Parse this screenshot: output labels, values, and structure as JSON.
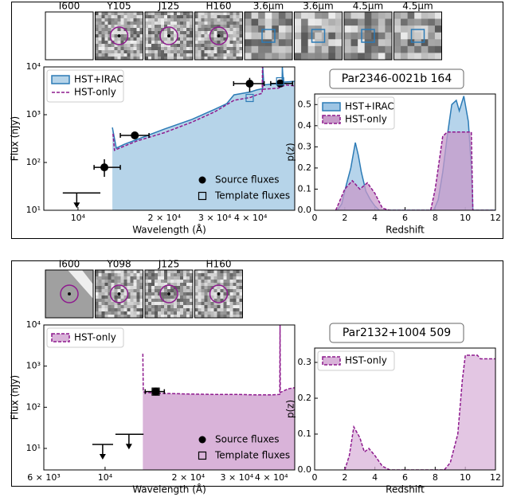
{
  "panels": [
    {
      "cutouts": [
        "I600",
        "Y105",
        "J125",
        "H160",
        "3.6μm",
        "3.6μm",
        "4.5μm",
        "4.5μm"
      ]
    },
    {
      "cutouts": [
        "I600",
        "Y098",
        "J125",
        "H160"
      ]
    }
  ],
  "chart_data": [
    {
      "type": "sed",
      "xscale": "log",
      "yscale": "log",
      "xlabel": "Wavelength (Å)",
      "ylabel": "Flux (nJy)",
      "xlim": [
        7600,
        57000
      ],
      "ylim": [
        10,
        10000
      ],
      "xticks": [
        {
          "value": 10000,
          "label": "10⁴"
        },
        {
          "value": 20000,
          "label": "2 × 10⁴"
        },
        {
          "value": 30000,
          "label": "3 × 10⁴"
        },
        {
          "value": 40000,
          "label": "4 × 10⁴"
        }
      ],
      "yticks": [
        {
          "value": 10,
          "label": "10¹"
        },
        {
          "value": 100,
          "label": "10²"
        },
        {
          "value": 1000,
          "label": "10³"
        },
        {
          "value": 10000,
          "label": "10⁴"
        }
      ],
      "legend": "upper left",
      "points_legend": "lower right",
      "series": [
        {
          "name": "HST+IRAC",
          "color": "#2c7bb6",
          "fill": "#b6d4e9",
          "x": [
            13180,
            13600,
            14500,
            16000,
            20000,
            25000,
            30000,
            33000,
            35000,
            40000,
            42000,
            44000,
            44100,
            44500,
            50000,
            51500,
            51600,
            52000,
            57000
          ],
          "values": [
            540,
            200,
            240,
            300,
            500,
            800,
            1300,
            1700,
            2600,
            3000,
            3300,
            3500,
            10000,
            4200,
            4500,
            4700,
            10000,
            4800,
            5000
          ]
        },
        {
          "name": "HST-only",
          "color": "#8e1a8e",
          "dashed": true,
          "x": [
            13250,
            13400,
            14500,
            16000,
            20000,
            25000,
            30000,
            35000,
            40000,
            42000,
            43900,
            44000,
            44100,
            50000,
            53000,
            57000
          ],
          "values": [
            400,
            180,
            220,
            280,
            420,
            700,
            1150,
            2000,
            2300,
            2600,
            2800,
            10000,
            3400,
            3600,
            4200,
            4000
          ]
        }
      ],
      "points": {
        "name": "Source fluxes",
        "x": [
          12360,
          15780,
          39700,
          50700
        ],
        "values": [
          79,
          369,
          4470,
          4500
        ],
        "x_range": [
          [
            11380,
            14050
          ],
          [
            14050,
            17690
          ],
          [
            34900,
            44600
          ],
          [
            47000,
            56000
          ]
        ],
        "y_range": [
          [
            50,
            117
          ],
          [
            330,
            410
          ],
          [
            3000,
            5900
          ],
          [
            3800,
            5300
          ]
        ]
      },
      "upper_limits": {
        "x": [
          9900
        ],
        "values": [
          23
        ],
        "x_range": [
          [
            8850,
            11970
          ]
        ]
      },
      "templates": {
        "name": "Template fluxes",
        "color": "#2c7bb6",
        "x": [
          39700,
          50700
        ],
        "values": [
          2240,
          5000
        ]
      }
    },
    {
      "type": "area",
      "title": "Par2346-0021b 164",
      "xlabel": "Redshift",
      "ylabel": "p(z)",
      "xlim": [
        0,
        12
      ],
      "ylim": [
        0,
        0.55
      ],
      "xticks": [
        0,
        2,
        4,
        6,
        8,
        10,
        12
      ],
      "yticks": [
        {
          "value": 0,
          "label": "0.0"
        },
        0.1,
        0.2,
        0.3,
        0.4,
        0.5
      ],
      "legend": "upper left",
      "series": [
        {
          "name": "HST+IRAC",
          "color": "#2c7bb6",
          "fill": "#9ec5e4",
          "x": [
            1.5,
            1.8,
            2.1,
            2.4,
            2.7,
            2.9,
            3.1,
            3.4,
            3.7,
            4.0,
            4.3,
            7.9,
            8.2,
            8.5,
            8.8,
            9.1,
            9.4,
            9.6,
            9.9,
            10.2,
            10.4,
            10.5,
            12
          ],
          "values": [
            0,
            0.03,
            0.12,
            0.2,
            0.32,
            0.26,
            0.18,
            0.09,
            0.05,
            0.02,
            0,
            0,
            0.05,
            0.18,
            0.35,
            0.5,
            0.52,
            0.47,
            0.54,
            0.42,
            0.2,
            0,
            0
          ]
        },
        {
          "name": "HST-only",
          "color": "#8e1a8e",
          "fill": "#c79ac9",
          "dashed": true,
          "x": [
            1.4,
            2.0,
            2.5,
            3.0,
            3.5,
            4.0,
            4.5,
            5.0,
            7.7,
            8.0,
            8.5,
            8.8,
            10.4,
            10.5,
            12
          ],
          "values": [
            0,
            0.1,
            0.14,
            0.1,
            0.13,
            0.08,
            0.01,
            0,
            0,
            0.1,
            0.35,
            0.37,
            0.37,
            0,
            0
          ]
        }
      ]
    },
    {
      "type": "sed",
      "xscale": "log",
      "yscale": "log",
      "xlabel": "Wavelength (Å)",
      "ylabel": "Flux (nJy)",
      "xlim": [
        6000,
        48600
      ],
      "ylim": [
        3,
        10000
      ],
      "xticks": [
        {
          "value": 6000,
          "label": "6 × 10³"
        },
        {
          "value": 10000,
          "label": "10⁴"
        },
        {
          "value": 20000,
          "label": "2 × 10⁴"
        },
        {
          "value": 30000,
          "label": "3 × 10⁴"
        },
        {
          "value": 40000,
          "label": "4 × 10⁴"
        }
      ],
      "yticks": [
        {
          "value": 10,
          "label": "10¹"
        },
        {
          "value": 100,
          "label": "10²"
        },
        {
          "value": 1000,
          "label": "10³"
        },
        {
          "value": 10000,
          "label": "10⁴"
        }
      ],
      "legend": "upper left",
      "points_legend": "lower right",
      "series": [
        {
          "name": "HST-only",
          "color": "#8e1a8e",
          "fill": "#d9b3d9",
          "dashed": true,
          "x": [
            13700,
            13750,
            14000,
            15500,
            20000,
            25000,
            30000,
            35000,
            40000,
            42900,
            43000,
            43100,
            46000,
            48600
          ],
          "values": [
            2000,
            240,
            230,
            220,
            210,
            205,
            205,
            200,
            200,
            205,
            10000,
            230,
            280,
            300
          ]
        }
      ],
      "points": {
        "name": "Source fluxes",
        "x": [
          15250
        ],
        "values": [
          240
        ],
        "x_range": [
          [
            13970,
            16390
          ]
        ],
        "y_range": [
          [
            210,
            280
          ]
        ]
      },
      "upper_limits": {
        "x": [
          9800,
          12200
        ],
        "values": [
          12.5,
          22
        ],
        "x_range": [
          [
            8990,
            10690
          ],
          [
            10900,
            13780
          ]
        ]
      },
      "templates": {
        "name": "Template fluxes",
        "color": "#000000",
        "x": [
          15250
        ],
        "values": [
          240
        ]
      }
    },
    {
      "type": "area",
      "title": "Par2132+1004 509",
      "xlabel": "Redshift",
      "ylabel": "p(z)",
      "xlim": [
        0,
        12
      ],
      "ylim": [
        0,
        0.34
      ],
      "xticks": [
        0,
        2,
        4,
        6,
        8,
        10,
        12
      ],
      "yticks": [
        {
          "value": 0,
          "label": "0.0"
        },
        0.1,
        0.2,
        0.3
      ],
      "legend": "upper left",
      "series": [
        {
          "name": "HST-only",
          "color": "#8e1a8e",
          "fill": "#d9b3d9",
          "dashed": true,
          "x": [
            2.0,
            2.3,
            2.6,
            3.0,
            3.3,
            3.6,
            4.0,
            4.5,
            5.0,
            8.6,
            9.0,
            9.5,
            9.8,
            10.0,
            10.8,
            11.0,
            12.0
          ],
          "values": [
            0,
            0.04,
            0.12,
            0.09,
            0.05,
            0.06,
            0.04,
            0.01,
            0,
            0,
            0.02,
            0.1,
            0.25,
            0.32,
            0.32,
            0.31,
            0.31
          ]
        }
      ]
    }
  ]
}
